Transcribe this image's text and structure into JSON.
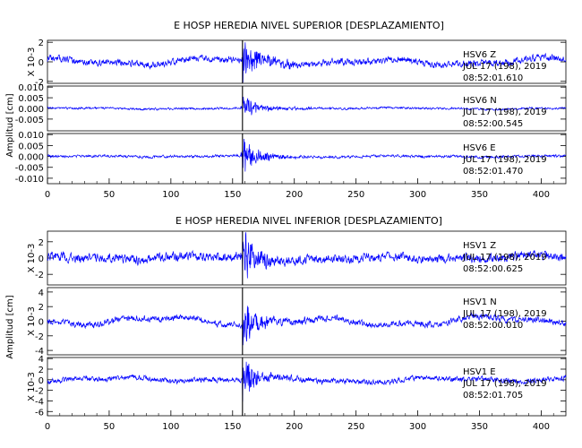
{
  "chart_data": [
    {
      "type": "line",
      "title": "E HOSP HEREDIA NIVEL SUPERIOR [DESPLAZAMIENTO]",
      "ylabel": "Amplitud [cm]",
      "xlim": [
        0,
        420
      ],
      "xticks": [
        "0",
        "50",
        "100",
        "150",
        "200",
        "250",
        "300",
        "350",
        "400"
      ],
      "event_time": 158,
      "color": "#0000ff",
      "grid": false,
      "series": [
        {
          "name": "HSV6 Z",
          "station": "HSV6",
          "component": "Z",
          "date": "JUL 17 (198), 2019",
          "time": "08:52:01.610",
          "scale_label": "X 10-3",
          "ylim": [
            -2.2,
            2.2
          ],
          "yticks": [
            "-2",
            "0",
            "2"
          ],
          "ytick_values": [
            -2,
            0,
            2
          ],
          "noise": 0.28,
          "peak": 2.1,
          "wander": 0.45,
          "seed": 11
        },
        {
          "name": "HSV6 N",
          "station": "HSV6",
          "component": "N",
          "date": "JUL 17 (198), 2019",
          "time": "08:52:00.545",
          "scale_label": "",
          "ylim": [
            -0.0105,
            0.0105
          ],
          "yticks": [
            "-0.005",
            "0.000",
            "0.005",
            "0.010"
          ],
          "ytick_values": [
            -0.005,
            0,
            0.005,
            0.01
          ],
          "noise": 0.0004,
          "peak": 0.0055,
          "wander": 0.0004,
          "seed": 23
        },
        {
          "name": "HSV6 E",
          "station": "HSV6",
          "component": "E",
          "date": "JUL 17 (198), 2019",
          "time": "08:52:01.470",
          "scale_label": "",
          "ylim": [
            -0.0125,
            0.0105
          ],
          "yticks": [
            "-0.010",
            "-0.005",
            "0.000",
            "0.005",
            "0.010"
          ],
          "ytick_values": [
            -0.01,
            -0.005,
            0,
            0.005,
            0.01
          ],
          "noise": 0.0005,
          "peak": 0.0075,
          "wander": 0.0004,
          "seed": 37
        }
      ]
    },
    {
      "type": "line",
      "title": "E HOSP HEREDIA NIVEL INFERIOR [DESPLAZAMIENTO]",
      "ylabel": "Amplitud [cm]",
      "xlim": [
        0,
        420
      ],
      "xticks": [
        "0",
        "50",
        "100",
        "150",
        "200",
        "250",
        "300",
        "350",
        "400"
      ],
      "event_time": 158,
      "color": "#0000ff",
      "grid": false,
      "series": [
        {
          "name": "HSV1 Z",
          "station": "HSV1",
          "component": "Z",
          "date": "JUL 17 (198), 2019",
          "time": "08:52:00.625",
          "scale_label": "X 10-3",
          "ylim": [
            -3.3,
            3.3
          ],
          "yticks": [
            "-2",
            "0",
            "2"
          ],
          "ytick_values": [
            -2,
            0,
            2
          ],
          "noise": 0.45,
          "peak": 2.8,
          "wander": 0.4,
          "seed": 53
        },
        {
          "name": "HSV1 N",
          "station": "HSV1",
          "component": "N",
          "date": "JUL 17 (198), 2019",
          "time": "08:52:00.010",
          "scale_label": "X 10-3",
          "ylim": [
            -4.6,
            4.6
          ],
          "yticks": [
            "-4",
            "-2",
            "0",
            "2",
            "4"
          ],
          "ytick_values": [
            -4,
            -2,
            0,
            2,
            4
          ],
          "noise": 0.35,
          "peak": 2.8,
          "wander": 0.7,
          "seed": 71
        },
        {
          "name": "HSV1 E",
          "station": "HSV1",
          "component": "E",
          "date": "JUL 17 (198), 2019",
          "time": "08:52:01.705",
          "scale_label": "X 10-3",
          "ylim": [
            -6.8,
            4.2
          ],
          "yticks": [
            "-6",
            "-4",
            "-2",
            "0",
            "2",
            "4"
          ],
          "ytick_values": [
            -6,
            -4,
            -2,
            0,
            2,
            4
          ],
          "noise": 0.4,
          "peak": 3.5,
          "wander": 0.6,
          "seed": 89
        }
      ]
    }
  ]
}
